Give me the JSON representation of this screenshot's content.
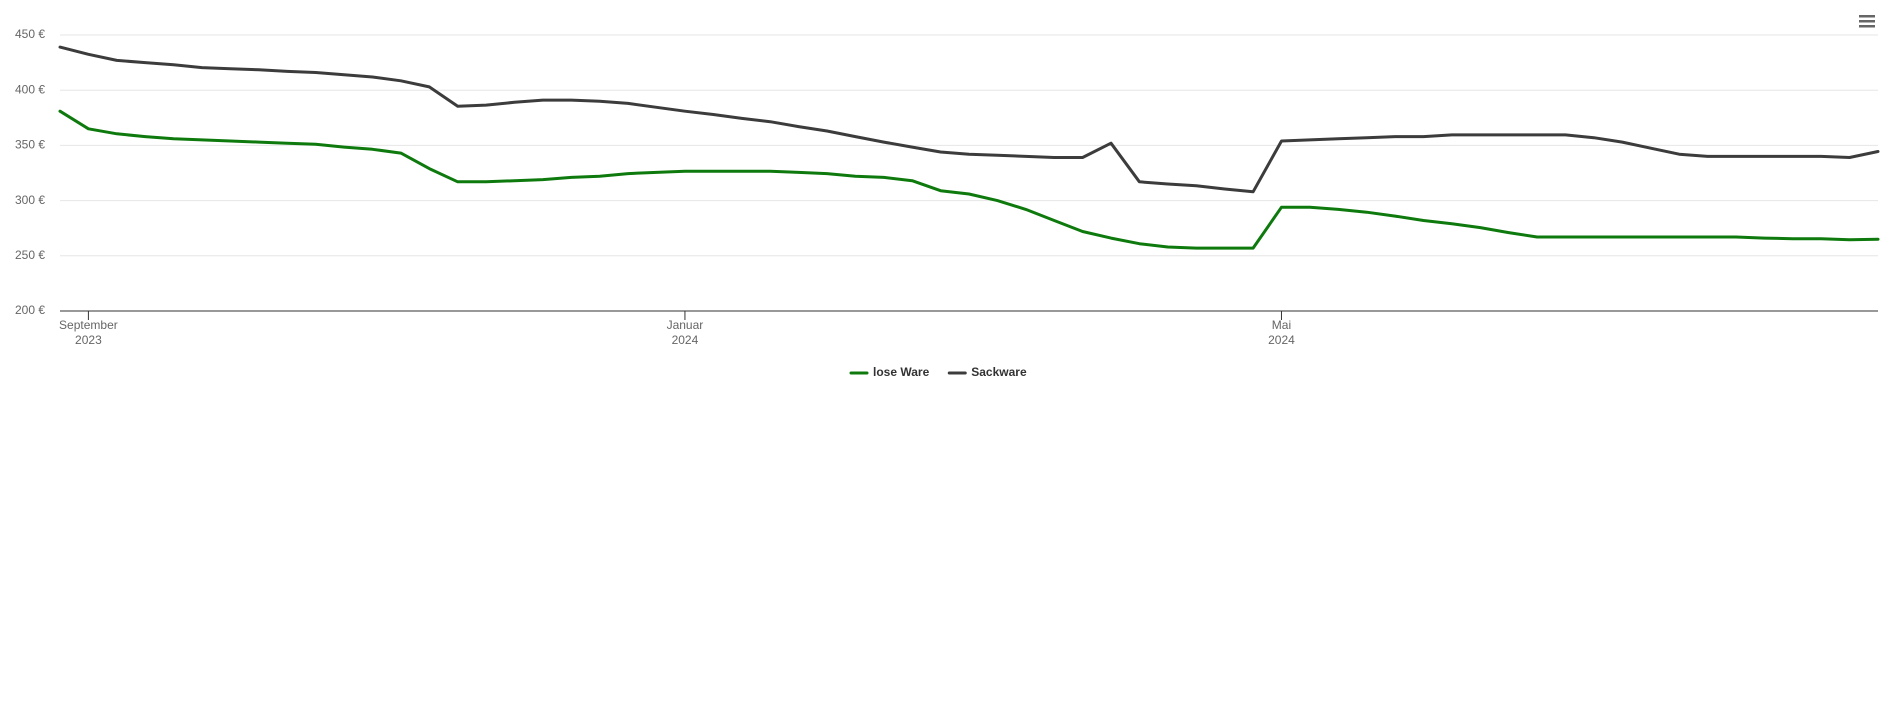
{
  "chart_data": {
    "type": "line",
    "categories": [
      null,
      [
        "September",
        "2023"
      ],
      null,
      null,
      null,
      null,
      null,
      null,
      null,
      null,
      null,
      null,
      null,
      null,
      null,
      null,
      null,
      null,
      null,
      null,
      null,
      null,
      [
        "Januar",
        "2024"
      ],
      null,
      null,
      null,
      null,
      null,
      null,
      null,
      null,
      null,
      null,
      null,
      null,
      null,
      null,
      null,
      null,
      null,
      null,
      null,
      null,
      [
        "Mai",
        "2024"
      ],
      null,
      null,
      null,
      null,
      null,
      null,
      null,
      null,
      null,
      null,
      null,
      null,
      null,
      null,
      null,
      null,
      null,
      null,
      null,
      null,
      null
    ],
    "series": [
      {
        "name": "lose Ware",
        "color": "#0e7a0d",
        "values": [
          381,
          365,
          360.5,
          358,
          356,
          355,
          354,
          353,
          352,
          351,
          348.5,
          346.5,
          343,
          329,
          317,
          317,
          318,
          319,
          321,
          322,
          324.5,
          325.5,
          326.5,
          326.5,
          326.5,
          326.5,
          325.5,
          324.5,
          322,
          321,
          318,
          309,
          306,
          300,
          292,
          282,
          272,
          266,
          261,
          258,
          257,
          257,
          257,
          294,
          294,
          292,
          289.5,
          286,
          282,
          279,
          275.5,
          271,
          267,
          267,
          267,
          267,
          267,
          267,
          267,
          267,
          266,
          265.5,
          265.5,
          264.5,
          265
        ]
      },
      {
        "name": "Sackware",
        "color": "#3c3c3c",
        "values": [
          439,
          432.5,
          427,
          425,
          423,
          420.5,
          419.5,
          418.5,
          417,
          416,
          414,
          412,
          408.5,
          403,
          385.5,
          386.5,
          389,
          391,
          391,
          390,
          388,
          384.5,
          381,
          378,
          374.5,
          371.5,
          367,
          363,
          358,
          353,
          348.5,
          344,
          342,
          341,
          340,
          339,
          339,
          352,
          317,
          315,
          313.5,
          310.5,
          308,
          354,
          355,
          356,
          357,
          358,
          358,
          359.5,
          359.5,
          359.5,
          359.5,
          359.5,
          357,
          353,
          347.5,
          342,
          340,
          340,
          340,
          340,
          340,
          339,
          344.5
        ]
      }
    ],
    "ylim": [
      200,
      450
    ],
    "yticks": [
      {
        "value": 200,
        "label": "200 €"
      },
      {
        "value": 250,
        "label": "250 €"
      },
      {
        "value": 300,
        "label": "300 €"
      },
      {
        "value": 350,
        "label": "350 €"
      },
      {
        "value": 400,
        "label": "400 €"
      },
      {
        "value": 450,
        "label": "450 €"
      }
    ],
    "grid": true
  }
}
